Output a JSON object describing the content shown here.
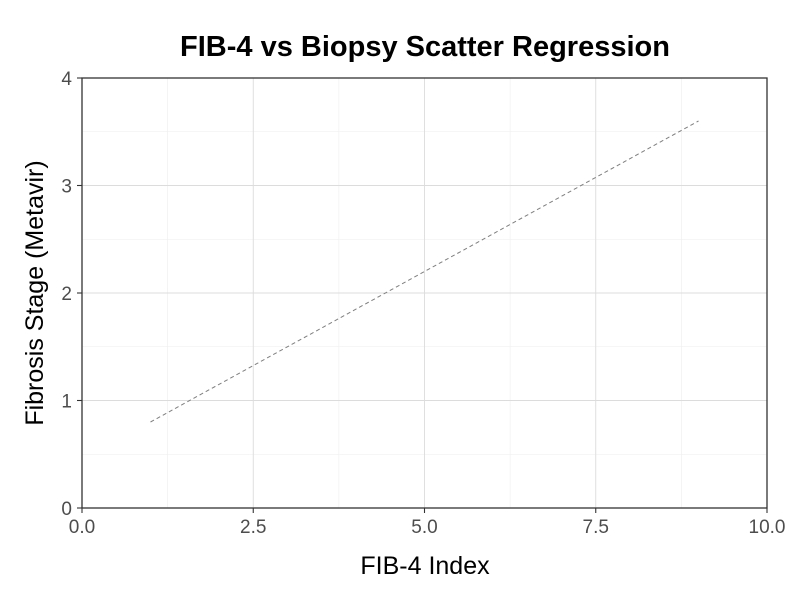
{
  "chart_data": {
    "type": "line",
    "title": "FIB-4 vs Biopsy Scatter Regression",
    "xlabel": "FIB-4 Index",
    "ylabel": "Fibrosis Stage (Metavir)",
    "xlim": [
      0,
      10
    ],
    "ylim": [
      0,
      4
    ],
    "x_ticks": [
      0,
      2.5,
      5,
      7.5,
      10
    ],
    "x_tick_labels": [
      "0.0",
      "2.5",
      "5.0",
      "7.5",
      "10.0"
    ],
    "y_ticks": [
      0,
      1,
      2,
      3,
      4
    ],
    "y_tick_labels": [
      "0",
      "1",
      "2",
      "3",
      "4"
    ],
    "grid": true,
    "series": [
      {
        "style": "dashed",
        "color": "#7f7f7f",
        "x": [
          1,
          9
        ],
        "y": [
          0.8,
          3.6
        ]
      }
    ]
  }
}
